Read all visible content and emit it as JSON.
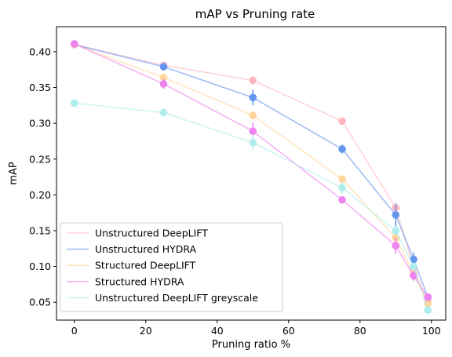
{
  "chart_data": {
    "type": "line",
    "title": "mAP vs Pruning rate",
    "xlabel": "Pruning ratio %",
    "ylabel": "mAP",
    "xlim": [
      -5,
      104
    ],
    "ylim": [
      0.025,
      0.435
    ],
    "xticks": [
      0,
      20,
      40,
      60,
      80,
      100
    ],
    "yticks": [
      0.05,
      0.1,
      0.15,
      0.2,
      0.25,
      0.3,
      0.35,
      0.4
    ],
    "ytick_labels": [
      "0.05",
      "0.10",
      "0.15",
      "0.20",
      "0.25",
      "0.30",
      "0.35",
      "0.40"
    ],
    "xtick_labels": [
      "0",
      "20",
      "40",
      "60",
      "80",
      "100"
    ],
    "grid": false,
    "legend_position": "lower-left",
    "series": [
      {
        "name": "Unstructured DeepLIFT",
        "color": "#ffb6c1",
        "x": [
          0,
          25,
          50,
          75,
          90,
          95,
          99
        ],
        "values": [
          0.41,
          0.381,
          0.36,
          0.303,
          0.182,
          0.098,
          0.05
        ],
        "errors": [
          0.003,
          0.004,
          0.006,
          0.005,
          0.006,
          0.004,
          0.003
        ]
      },
      {
        "name": "Unstructured HYDRA",
        "color": "#6495ed",
        "x": [
          0,
          25,
          50,
          75,
          90,
          95,
          99
        ],
        "values": [
          0.41,
          0.379,
          0.336,
          0.264,
          0.172,
          0.11,
          0.057
        ],
        "errors": [
          0.003,
          0.005,
          0.011,
          0.006,
          0.016,
          0.01,
          0.004
        ]
      },
      {
        "name": "Structured DeepLIFT",
        "color": "#ffd59a",
        "x": [
          0,
          25,
          50,
          75,
          90,
          95,
          99
        ],
        "values": [
          0.41,
          0.364,
          0.311,
          0.222,
          0.14,
          0.09,
          0.048
        ],
        "errors": [
          0.003,
          0.004,
          0.005,
          0.005,
          0.006,
          0.004,
          0.003
        ]
      },
      {
        "name": "Structured HYDRA",
        "color": "#ee82ee",
        "x": [
          0,
          25,
          50,
          75,
          90,
          95,
          99
        ],
        "values": [
          0.411,
          0.355,
          0.289,
          0.193,
          0.129,
          0.087,
          0.057
        ],
        "errors": [
          0.003,
          0.007,
          0.012,
          0.004,
          0.011,
          0.007,
          0.004
        ]
      },
      {
        "name": "Unstructured DeepLIFT greyscale",
        "color": "#afeeee",
        "x": [
          0,
          25,
          50,
          75,
          90,
          95,
          99
        ],
        "values": [
          0.328,
          0.315,
          0.273,
          0.21,
          0.15,
          0.1,
          0.039
        ],
        "errors": [
          0.003,
          0.004,
          0.011,
          0.008,
          0.006,
          0.005,
          0.004
        ]
      }
    ]
  }
}
